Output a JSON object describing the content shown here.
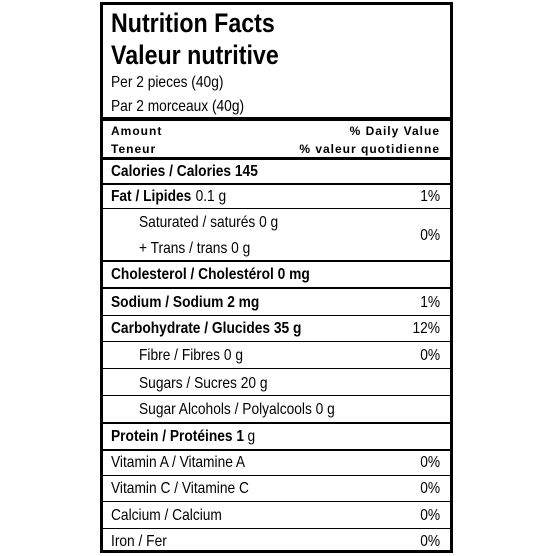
{
  "header": {
    "title": "Nutrition Facts",
    "title_fr": "Valeur nutritive",
    "serving": "Per 2 pieces (40g)",
    "serving_fr": "Par 2 morceaux (40g)"
  },
  "columns": {
    "amount": "Amount",
    "amount_fr": "Teneur",
    "dv": "% Daily Value",
    "dv_fr": "% valeur quotidienne"
  },
  "rows": [
    {
      "label": "Calories / Calories 145"
    },
    {
      "label": "Fat / Lipides",
      "amount": "0.1 g",
      "dv": "1%"
    },
    {
      "lines": [
        "Saturated / saturés 0 g",
        "+ Trans / trans 0 g"
      ],
      "dv": "0%"
    },
    {
      "label": "Cholesterol / Cholestérol 0 mg"
    },
    {
      "label": "Sodium / Sodium 2 mg",
      "dv": "1%"
    },
    {
      "label": "Carbohydrate / Glucides 35 g",
      "dv": "12%"
    },
    {
      "label": "Fibre / Fibres 0 g",
      "dv": "0%"
    },
    {
      "label": "Sugars / Sucres 20 g"
    },
    {
      "label": "Sugar Alcohols / Polyalcools 0 g"
    },
    {
      "label": "Protein / Protéines 1",
      "amount": "g"
    },
    {
      "label": "Vitamin A / Vitamine A",
      "dv": "0%"
    },
    {
      "label": "Vitamin C / Vitamine C",
      "dv": "0%"
    },
    {
      "label": "Calcium / Calcium",
      "dv": "0%"
    },
    {
      "label": "Iron / Fer",
      "dv": "0%"
    }
  ]
}
